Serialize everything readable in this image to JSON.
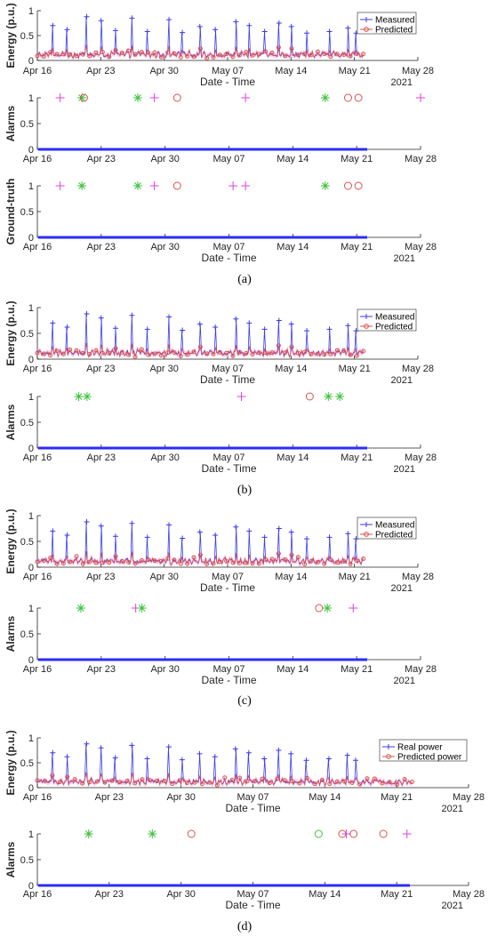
{
  "chart_data": [
    {
      "id": "a1",
      "type": "line",
      "panel": "a",
      "ylabel": "Energy (p.u.)",
      "xlabel": "Date - Time",
      "year_label": "2021",
      "ylim": [
        0,
        1
      ],
      "yticks": [
        0,
        0.5,
        1
      ],
      "xticks": [
        "Apr 16",
        "Apr 23",
        "Apr 30",
        "May 07",
        "May 14",
        "May 21",
        "May 28"
      ],
      "legend": [
        "Measured",
        "Predicted"
      ],
      "legend_position": "top-right",
      "x_range_days": [
        0,
        37
      ],
      "data_range_days": [
        0,
        31.7
      ],
      "series": [
        {
          "name": "Measured",
          "color": "#3b3bf0",
          "marker": "+"
        },
        {
          "name": "Predicted",
          "color": "#d9534f",
          "marker": "o"
        }
      ],
      "peaks": [
        [
          1.5,
          0.7
        ],
        [
          2.9,
          0.62
        ],
        [
          4.8,
          0.88
        ],
        [
          6.2,
          0.8
        ],
        [
          7.6,
          0.6
        ],
        [
          9.2,
          0.85
        ],
        [
          10.7,
          0.58
        ],
        [
          12.8,
          0.82
        ],
        [
          14.1,
          0.56
        ],
        [
          15.8,
          0.68
        ],
        [
          17.3,
          0.62
        ],
        [
          19.3,
          0.78
        ],
        [
          20.6,
          0.7
        ],
        [
          22.1,
          0.58
        ],
        [
          23.5,
          0.75
        ],
        [
          24.7,
          0.68
        ],
        [
          26.2,
          0.55
        ],
        [
          28.4,
          0.58
        ],
        [
          30.2,
          0.65
        ],
        [
          31.0,
          0.55
        ]
      ]
    },
    {
      "id": "a2",
      "type": "scatter",
      "panel": "a",
      "ylabel": "Alarms",
      "ylim": [
        0,
        1
      ],
      "yticks": [
        0,
        0.5,
        1
      ],
      "xticks": [
        "Apr 16",
        "Apr 23",
        "Apr 30",
        "May 07",
        "May 14",
        "May 21",
        "May 28"
      ],
      "legend": [],
      "points": [
        {
          "day": 2.2,
          "marker": "+",
          "color": "#e040e0"
        },
        {
          "day": 4.3,
          "marker": "*",
          "color": "#3cc23c"
        },
        {
          "day": 4.5,
          "marker": "o",
          "color": "#d9534f"
        },
        {
          "day": 9.7,
          "marker": "*",
          "color": "#3cc23c"
        },
        {
          "day": 11.3,
          "marker": "+",
          "color": "#e040e0"
        },
        {
          "day": 13.5,
          "marker": "o",
          "color": "#d9534f"
        },
        {
          "day": 20.1,
          "marker": "+",
          "color": "#e040e0"
        },
        {
          "day": 27.8,
          "marker": "*",
          "color": "#3cc23c"
        },
        {
          "day": 30.0,
          "marker": "o",
          "color": "#d9534f"
        },
        {
          "day": 31.0,
          "marker": "o",
          "color": "#d9534f"
        },
        {
          "day": 37.0,
          "marker": "+",
          "color": "#e040e0"
        }
      ]
    },
    {
      "id": "a3",
      "type": "scatter",
      "panel": "a",
      "ylabel": "Ground-truth",
      "xlabel": "Date - Time",
      "year_label": "2021",
      "ylim": [
        0,
        1
      ],
      "yticks": [
        0,
        0.5,
        1
      ],
      "xticks": [
        "Apr 16",
        "Apr 23",
        "Apr 30",
        "May 07",
        "May 14",
        "May 21",
        "May 28"
      ],
      "legend": [],
      "points": [
        {
          "day": 2.2,
          "marker": "+",
          "color": "#e040e0"
        },
        {
          "day": 4.3,
          "marker": "*",
          "color": "#3cc23c"
        },
        {
          "day": 9.7,
          "marker": "*",
          "color": "#3cc23c"
        },
        {
          "day": 11.3,
          "marker": "+",
          "color": "#e040e0"
        },
        {
          "day": 13.5,
          "marker": "o",
          "color": "#d9534f"
        },
        {
          "day": 18.9,
          "marker": "+",
          "color": "#e040e0"
        },
        {
          "day": 20.1,
          "marker": "+",
          "color": "#e040e0"
        },
        {
          "day": 27.8,
          "marker": "*",
          "color": "#3cc23c"
        },
        {
          "day": 30.0,
          "marker": "o",
          "color": "#d9534f"
        },
        {
          "day": 31.0,
          "marker": "o",
          "color": "#d9534f"
        }
      ]
    },
    {
      "id": "b1",
      "type": "line",
      "panel": "b",
      "ylabel": "Energy (p.u.)",
      "xlabel": "Date - Time",
      "year_label": "2021",
      "ylim": [
        0,
        1
      ],
      "yticks": [
        0,
        0.5,
        1
      ],
      "xticks": [
        "Apr 16",
        "Apr 23",
        "Apr 30",
        "May 07",
        "May 14",
        "May 21",
        "May 28"
      ],
      "legend": [
        "Measured",
        "Predicted"
      ],
      "legend_position": "top-right",
      "x_range_days": [
        0,
        37
      ],
      "data_range_days": [
        0,
        31.7
      ],
      "series": [
        {
          "name": "Measured",
          "color": "#3b3bf0",
          "marker": "+"
        },
        {
          "name": "Predicted",
          "color": "#d9534f",
          "marker": "o"
        }
      ],
      "peaks": [
        [
          1.5,
          0.7
        ],
        [
          2.9,
          0.62
        ],
        [
          4.8,
          0.88
        ],
        [
          6.2,
          0.8
        ],
        [
          7.6,
          0.6
        ],
        [
          9.2,
          0.85
        ],
        [
          10.7,
          0.58
        ],
        [
          12.8,
          0.82
        ],
        [
          14.1,
          0.56
        ],
        [
          15.8,
          0.68
        ],
        [
          17.3,
          0.62
        ],
        [
          19.3,
          0.78
        ],
        [
          20.6,
          0.7
        ],
        [
          22.1,
          0.58
        ],
        [
          23.5,
          0.75
        ],
        [
          24.7,
          0.68
        ],
        [
          26.2,
          0.55
        ],
        [
          28.4,
          0.58
        ],
        [
          30.2,
          0.65
        ],
        [
          31.0,
          0.55
        ]
      ]
    },
    {
      "id": "b2",
      "type": "scatter",
      "panel": "b",
      "ylabel": "Alarms",
      "xlabel": "Date - Time",
      "year_label": "2021",
      "ylim": [
        0,
        1
      ],
      "yticks": [
        0,
        0.5,
        1
      ],
      "xticks": [
        "Apr 16",
        "Apr 23",
        "Apr 30",
        "May 07",
        "May 14",
        "May 21",
        "May 28"
      ],
      "legend": [],
      "points": [
        {
          "day": 4.0,
          "marker": "*",
          "color": "#3cc23c"
        },
        {
          "day": 4.8,
          "marker": "*",
          "color": "#3cc23c"
        },
        {
          "day": 19.7,
          "marker": "+",
          "color": "#e040e0"
        },
        {
          "day": 26.3,
          "marker": "o",
          "color": "#d9534f"
        },
        {
          "day": 28.1,
          "marker": "*",
          "color": "#3cc23c"
        },
        {
          "day": 29.2,
          "marker": "*",
          "color": "#3cc23c"
        }
      ]
    },
    {
      "id": "c1",
      "type": "line",
      "panel": "c",
      "ylabel": "Energy (p.u.)",
      "xlabel": "Date - Time",
      "year_label": "2021",
      "ylim": [
        0,
        1
      ],
      "yticks": [
        0,
        0.5,
        1
      ],
      "xticks": [
        "Apr 16",
        "Apr 23",
        "Apr 30",
        "May 07",
        "May 14",
        "May 21",
        "May 28"
      ],
      "legend": [
        "Measured",
        "Predicted"
      ],
      "legend_position": "top-right",
      "x_range_days": [
        0,
        37
      ],
      "data_range_days": [
        0,
        31.7
      ],
      "series": [
        {
          "name": "Measured",
          "color": "#3b3bf0",
          "marker": "+"
        },
        {
          "name": "Predicted",
          "color": "#d9534f",
          "marker": "o"
        }
      ],
      "peaks": [
        [
          1.5,
          0.7
        ],
        [
          2.9,
          0.62
        ],
        [
          4.8,
          0.88
        ],
        [
          6.2,
          0.8
        ],
        [
          7.6,
          0.6
        ],
        [
          9.2,
          0.85
        ],
        [
          10.7,
          0.58
        ],
        [
          12.8,
          0.82
        ],
        [
          14.1,
          0.56
        ],
        [
          15.8,
          0.68
        ],
        [
          17.3,
          0.62
        ],
        [
          19.3,
          0.78
        ],
        [
          20.6,
          0.7
        ],
        [
          22.1,
          0.58
        ],
        [
          23.5,
          0.75
        ],
        [
          24.7,
          0.68
        ],
        [
          26.2,
          0.55
        ],
        [
          28.4,
          0.58
        ],
        [
          30.2,
          0.65
        ],
        [
          31.0,
          0.55
        ]
      ]
    },
    {
      "id": "c2",
      "type": "scatter",
      "panel": "c",
      "ylabel": "Alarms",
      "xlabel": "Date - Time",
      "year_label": "2021",
      "ylim": [
        0,
        1
      ],
      "yticks": [
        0,
        0.5,
        1
      ],
      "xticks": [
        "Apr 16",
        "Apr 23",
        "Apr 30",
        "May 07",
        "May 14",
        "May 21",
        "May 28"
      ],
      "legend": [],
      "points": [
        {
          "day": 4.2,
          "marker": "*",
          "color": "#3cc23c"
        },
        {
          "day": 9.5,
          "marker": "+",
          "color": "#e040e0"
        },
        {
          "day": 10.1,
          "marker": "*",
          "color": "#3cc23c"
        },
        {
          "day": 27.2,
          "marker": "o",
          "color": "#d9534f"
        },
        {
          "day": 28.0,
          "marker": "*",
          "color": "#3cc23c"
        },
        {
          "day": 30.5,
          "marker": "+",
          "color": "#e040e0"
        }
      ]
    },
    {
      "id": "d1",
      "type": "line",
      "panel": "d",
      "ylabel": "Energy (p.u.)",
      "xlabel": "Date - Time",
      "year_label": "2021",
      "ylim": [
        0,
        1
      ],
      "yticks": [
        0,
        0.5,
        1
      ],
      "xticks": [
        "Apr 16",
        "Apr 23",
        "Apr 30",
        "May 07",
        "May 14",
        "May 21",
        "May 28"
      ],
      "legend": [
        "Real power",
        "Predicted power"
      ],
      "legend_position": "top-right",
      "x_range_days": [
        0,
        42
      ],
      "data_range_days": [
        0,
        36.5
      ],
      "series": [
        {
          "name": "Real power",
          "color": "#3b3bf0",
          "marker": "+"
        },
        {
          "name": "Predicted power",
          "color": "#d9534f",
          "marker": "o"
        }
      ],
      "peaks": [
        [
          1.5,
          0.7
        ],
        [
          2.9,
          0.62
        ],
        [
          4.8,
          0.88
        ],
        [
          6.2,
          0.8
        ],
        [
          7.6,
          0.6
        ],
        [
          9.2,
          0.85
        ],
        [
          10.7,
          0.58
        ],
        [
          12.8,
          0.82
        ],
        [
          14.1,
          0.56
        ],
        [
          15.8,
          0.68
        ],
        [
          17.3,
          0.62
        ],
        [
          19.3,
          0.78
        ],
        [
          20.6,
          0.7
        ],
        [
          22.1,
          0.58
        ],
        [
          23.5,
          0.75
        ],
        [
          24.7,
          0.68
        ],
        [
          26.2,
          0.55
        ],
        [
          28.4,
          0.58
        ],
        [
          30.2,
          0.65
        ],
        [
          31.0,
          0.55
        ]
      ]
    },
    {
      "id": "d2",
      "type": "scatter",
      "panel": "d",
      "ylabel": "Alarms",
      "xlabel": "Date - Time",
      "year_label": "2021",
      "ylim": [
        0,
        1
      ],
      "yticks": [
        0,
        0.5,
        1
      ],
      "xticks": [
        "Apr 16",
        "Apr 23",
        "Apr 30",
        "May 07",
        "May 14",
        "May 21",
        "May 28"
      ],
      "legend": [],
      "points": [
        {
          "day": 5.0,
          "marker": "*",
          "color": "#3cc23c"
        },
        {
          "day": 11.2,
          "marker": "*",
          "color": "#3cc23c"
        },
        {
          "day": 15.0,
          "marker": "o",
          "color": "#d9534f"
        },
        {
          "day": 27.4,
          "marker": "o",
          "color": "#3cc23c"
        },
        {
          "day": 29.7,
          "marker": "o",
          "color": "#d9534f"
        },
        {
          "day": 30.1,
          "marker": "+",
          "color": "#e040e0"
        },
        {
          "day": 30.8,
          "marker": "o",
          "color": "#d9534f"
        },
        {
          "day": 33.7,
          "marker": "o",
          "color": "#d9534f"
        },
        {
          "day": 36.0,
          "marker": "+",
          "color": "#e040e0"
        }
      ]
    }
  ],
  "captions": {
    "a": "(a)",
    "b": "(b)",
    "c": "(c)",
    "d": "(d)"
  }
}
